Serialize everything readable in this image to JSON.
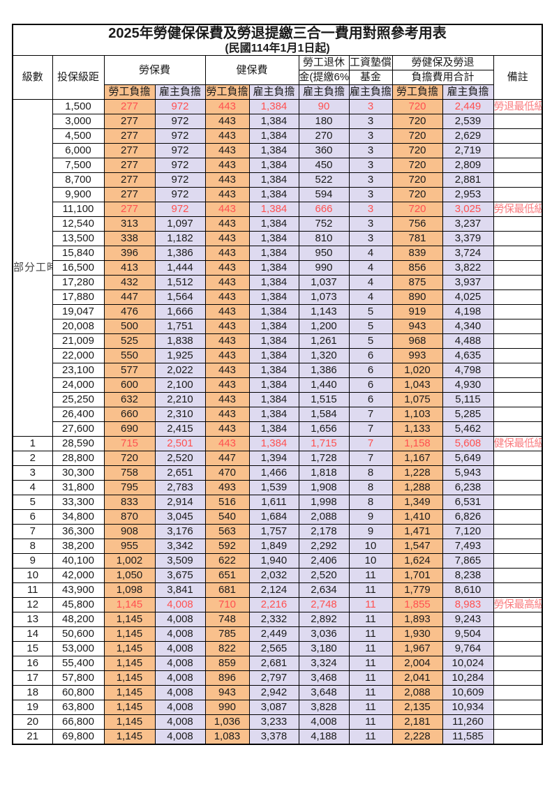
{
  "title": "2025年勞健保保費及勞退提繳三合一費用對照參考用表",
  "subtitle": "(民國114年1月1日起)",
  "columns": {
    "level": "級數",
    "salary": "投保級距",
    "labor_ins": "勞保費",
    "health_ins": "健保費",
    "pension_line1": "勞工退休",
    "pension_line2": "金(提繳6%)",
    "wage_fund_line1": "工資墊償",
    "wage_fund_line2": "基金",
    "total_line1": "勞健保及勞退",
    "total_line2": "負擔費用合計",
    "employee": "勞工負擔",
    "employer": "雇主負擔",
    "note": "備註"
  },
  "part_time_label": "部分工時",
  "colors": {
    "employee_bg": "#f9c08c",
    "employer_bg": "#dedaf0",
    "highlight_text": "#ff5050",
    "note_text": "#fa7d80"
  },
  "rows": [
    {
      "level": "",
      "salary": "1,500",
      "li_emp": "277",
      "li_er": "972",
      "hi_emp": "443",
      "hi_er": "1,384",
      "pen_er": "90",
      "fund_er": "3",
      "tot_emp": "720",
      "tot_er": "2,449",
      "note": "勞退最低級距",
      "highlight": true,
      "large": false
    },
    {
      "level": "",
      "salary": "3,000",
      "li_emp": "277",
      "li_er": "972",
      "hi_emp": "443",
      "hi_er": "1,384",
      "pen_er": "180",
      "fund_er": "3",
      "tot_emp": "720",
      "tot_er": "2,539",
      "note": "",
      "highlight": false,
      "large": false
    },
    {
      "level": "",
      "salary": "4,500",
      "li_emp": "277",
      "li_er": "972",
      "hi_emp": "443",
      "hi_er": "1,384",
      "pen_er": "270",
      "fund_er": "3",
      "tot_emp": "720",
      "tot_er": "2,629",
      "note": "",
      "highlight": false,
      "large": false
    },
    {
      "level": "",
      "salary": "6,000",
      "li_emp": "277",
      "li_er": "972",
      "hi_emp": "443",
      "hi_er": "1,384",
      "pen_er": "360",
      "fund_er": "3",
      "tot_emp": "720",
      "tot_er": "2,719",
      "note": "",
      "highlight": false,
      "large": false
    },
    {
      "level": "",
      "salary": "7,500",
      "li_emp": "277",
      "li_er": "972",
      "hi_emp": "443",
      "hi_er": "1,384",
      "pen_er": "450",
      "fund_er": "3",
      "tot_emp": "720",
      "tot_er": "2,809",
      "note": "",
      "highlight": false,
      "large": false
    },
    {
      "level": "",
      "salary": "8,700",
      "li_emp": "277",
      "li_er": "972",
      "hi_emp": "443",
      "hi_er": "1,384",
      "pen_er": "522",
      "fund_er": "3",
      "tot_emp": "720",
      "tot_er": "2,881",
      "note": "",
      "highlight": false,
      "large": false
    },
    {
      "level": "",
      "salary": "9,900",
      "li_emp": "277",
      "li_er": "972",
      "hi_emp": "443",
      "hi_er": "1,384",
      "pen_er": "594",
      "fund_er": "3",
      "tot_emp": "720",
      "tot_er": "2,953",
      "note": "",
      "highlight": false,
      "large": false
    },
    {
      "level": "",
      "salary": "11,100",
      "li_emp": "277",
      "li_er": "972",
      "hi_emp": "443",
      "hi_er": "1,384",
      "pen_er": "666",
      "fund_er": "3",
      "tot_emp": "720",
      "tot_er": "3,025",
      "note": "勞保最低級距",
      "highlight": true,
      "large": false
    },
    {
      "level": "",
      "salary": "12,540",
      "li_emp": "313",
      "li_er": "1,097",
      "hi_emp": "443",
      "hi_er": "1,384",
      "pen_er": "752",
      "fund_er": "3",
      "tot_emp": "756",
      "tot_er": "3,237",
      "note": "",
      "highlight": false,
      "large": false
    },
    {
      "level": "",
      "salary": "13,500",
      "li_emp": "338",
      "li_er": "1,182",
      "hi_emp": "443",
      "hi_er": "1,384",
      "pen_er": "810",
      "fund_er": "3",
      "tot_emp": "781",
      "tot_er": "3,379",
      "note": "",
      "highlight": false,
      "large": false
    },
    {
      "level": "",
      "salary": "15,840",
      "li_emp": "396",
      "li_er": "1,386",
      "hi_emp": "443",
      "hi_er": "1,384",
      "pen_er": "950",
      "fund_er": "4",
      "tot_emp": "839",
      "tot_er": "3,724",
      "note": "",
      "highlight": false,
      "large": false
    },
    {
      "level": "",
      "salary": "16,500",
      "li_emp": "413",
      "li_er": "1,444",
      "hi_emp": "443",
      "hi_er": "1,384",
      "pen_er": "990",
      "fund_er": "4",
      "tot_emp": "856",
      "tot_er": "3,822",
      "note": "",
      "highlight": false,
      "large": false
    },
    {
      "level": "",
      "salary": "17,280",
      "li_emp": "432",
      "li_er": "1,512",
      "hi_emp": "443",
      "hi_er": "1,384",
      "pen_er": "1,037",
      "fund_er": "4",
      "tot_emp": "875",
      "tot_er": "3,937",
      "note": "",
      "highlight": false,
      "large": false
    },
    {
      "level": "",
      "salary": "17,880",
      "li_emp": "447",
      "li_er": "1,564",
      "hi_emp": "443",
      "hi_er": "1,384",
      "pen_er": "1,073",
      "fund_er": "4",
      "tot_emp": "890",
      "tot_er": "4,025",
      "note": "",
      "highlight": false,
      "large": false
    },
    {
      "level": "",
      "salary": "19,047",
      "li_emp": "476",
      "li_er": "1,666",
      "hi_emp": "443",
      "hi_er": "1,384",
      "pen_er": "1,143",
      "fund_er": "5",
      "tot_emp": "919",
      "tot_er": "4,198",
      "note": "",
      "highlight": false,
      "large": false
    },
    {
      "level": "",
      "salary": "20,008",
      "li_emp": "500",
      "li_er": "1,751",
      "hi_emp": "443",
      "hi_er": "1,384",
      "pen_er": "1,200",
      "fund_er": "5",
      "tot_emp": "943",
      "tot_er": "4,340",
      "note": "",
      "highlight": false,
      "large": false
    },
    {
      "level": "",
      "salary": "21,009",
      "li_emp": "525",
      "li_er": "1,838",
      "hi_emp": "443",
      "hi_er": "1,384",
      "pen_er": "1,261",
      "fund_er": "5",
      "tot_emp": "968",
      "tot_er": "4,488",
      "note": "",
      "highlight": false,
      "large": false
    },
    {
      "level": "",
      "salary": "22,000",
      "li_emp": "550",
      "li_er": "1,925",
      "hi_emp": "443",
      "hi_er": "1,384",
      "pen_er": "1,320",
      "fund_er": "6",
      "tot_emp": "993",
      "tot_er": "4,635",
      "note": "",
      "highlight": false,
      "large": false
    },
    {
      "level": "",
      "salary": "23,100",
      "li_emp": "577",
      "li_er": "2,022",
      "hi_emp": "443",
      "hi_er": "1,384",
      "pen_er": "1,386",
      "fund_er": "6",
      "tot_emp": "1,020",
      "tot_er": "4,798",
      "note": "",
      "highlight": false,
      "large": false
    },
    {
      "level": "",
      "salary": "24,000",
      "li_emp": "600",
      "li_er": "2,100",
      "hi_emp": "443",
      "hi_er": "1,384",
      "pen_er": "1,440",
      "fund_er": "6",
      "tot_emp": "1,043",
      "tot_er": "4,930",
      "note": "",
      "highlight": false,
      "large": false
    },
    {
      "level": "",
      "salary": "25,250",
      "li_emp": "632",
      "li_er": "2,210",
      "hi_emp": "443",
      "hi_er": "1,384",
      "pen_er": "1,515",
      "fund_er": "6",
      "tot_emp": "1,075",
      "tot_er": "5,115",
      "note": "",
      "highlight": false,
      "large": false
    },
    {
      "level": "",
      "salary": "26,400",
      "li_emp": "660",
      "li_er": "2,310",
      "hi_emp": "443",
      "hi_er": "1,384",
      "pen_er": "1,584",
      "fund_er": "7",
      "tot_emp": "1,103",
      "tot_er": "5,285",
      "note": "",
      "highlight": false,
      "large": false
    },
    {
      "level": "",
      "salary": "27,600",
      "li_emp": "690",
      "li_er": "2,415",
      "hi_emp": "443",
      "hi_er": "1,384",
      "pen_er": "1,656",
      "fund_er": "7",
      "tot_emp": "1,133",
      "tot_er": "5,462",
      "note": "",
      "highlight": false,
      "large": false
    },
    {
      "level": "1",
      "salary": "28,590",
      "li_emp": "715",
      "li_er": "2,501",
      "hi_emp": "443",
      "hi_er": "1,384",
      "pen_er": "1,715",
      "fund_er": "7",
      "tot_emp": "1,158",
      "tot_er": "5,608",
      "note": "健保最低級距",
      "highlight": true,
      "large": true
    },
    {
      "level": "2",
      "salary": "28,800",
      "li_emp": "720",
      "li_er": "2,520",
      "hi_emp": "447",
      "hi_er": "1,394",
      "pen_er": "1,728",
      "fund_er": "7",
      "tot_emp": "1,167",
      "tot_er": "5,649",
      "note": "",
      "highlight": false,
      "large": false
    },
    {
      "level": "3",
      "salary": "30,300",
      "li_emp": "758",
      "li_er": "2,651",
      "hi_emp": "470",
      "hi_er": "1,466",
      "pen_er": "1,818",
      "fund_er": "8",
      "tot_emp": "1,228",
      "tot_er": "5,943",
      "note": "",
      "highlight": false,
      "large": false
    },
    {
      "level": "4",
      "salary": "31,800",
      "li_emp": "795",
      "li_er": "2,783",
      "hi_emp": "493",
      "hi_er": "1,539",
      "pen_er": "1,908",
      "fund_er": "8",
      "tot_emp": "1,288",
      "tot_er": "6,238",
      "note": "",
      "highlight": false,
      "large": false
    },
    {
      "level": "5",
      "salary": "33,300",
      "li_emp": "833",
      "li_er": "2,914",
      "hi_emp": "516",
      "hi_er": "1,611",
      "pen_er": "1,998",
      "fund_er": "8",
      "tot_emp": "1,349",
      "tot_er": "6,531",
      "note": "",
      "highlight": false,
      "large": false
    },
    {
      "level": "6",
      "salary": "34,800",
      "li_emp": "870",
      "li_er": "3,045",
      "hi_emp": "540",
      "hi_er": "1,684",
      "pen_er": "2,088",
      "fund_er": "9",
      "tot_emp": "1,410",
      "tot_er": "6,826",
      "note": "",
      "highlight": false,
      "large": false
    },
    {
      "level": "7",
      "salary": "36,300",
      "li_emp": "908",
      "li_er": "3,176",
      "hi_emp": "563",
      "hi_er": "1,757",
      "pen_er": "2,178",
      "fund_er": "9",
      "tot_emp": "1,471",
      "tot_er": "7,120",
      "note": "",
      "highlight": false,
      "large": false
    },
    {
      "level": "8",
      "salary": "38,200",
      "li_emp": "955",
      "li_er": "3,342",
      "hi_emp": "592",
      "hi_er": "1,849",
      "pen_er": "2,292",
      "fund_er": "10",
      "tot_emp": "1,547",
      "tot_er": "7,493",
      "note": "",
      "highlight": false,
      "large": false
    },
    {
      "level": "9",
      "salary": "40,100",
      "li_emp": "1,002",
      "li_er": "3,509",
      "hi_emp": "622",
      "hi_er": "1,940",
      "pen_er": "2,406",
      "fund_er": "10",
      "tot_emp": "1,624",
      "tot_er": "7,865",
      "note": "",
      "highlight": false,
      "large": false
    },
    {
      "level": "10",
      "salary": "42,000",
      "li_emp": "1,050",
      "li_er": "3,675",
      "hi_emp": "651",
      "hi_er": "2,032",
      "pen_er": "2,520",
      "fund_er": "11",
      "tot_emp": "1,701",
      "tot_er": "8,238",
      "note": "",
      "highlight": false,
      "large": false
    },
    {
      "level": "11",
      "salary": "43,900",
      "li_emp": "1,098",
      "li_er": "3,841",
      "hi_emp": "681",
      "hi_er": "2,124",
      "pen_er": "2,634",
      "fund_er": "11",
      "tot_emp": "1,779",
      "tot_er": "8,610",
      "note": "",
      "highlight": false,
      "large": false
    },
    {
      "level": "12",
      "salary": "45,800",
      "li_emp": "1,145",
      "li_er": "4,008",
      "hi_emp": "710",
      "hi_er": "2,216",
      "pen_er": "2,748",
      "fund_er": "11",
      "tot_emp": "1,855",
      "tot_er": "8,983",
      "note": "勞保最高級距",
      "highlight": true,
      "large": true
    },
    {
      "level": "13",
      "salary": "48,200",
      "li_emp": "1,145",
      "li_er": "4,008",
      "hi_emp": "748",
      "hi_er": "2,332",
      "pen_er": "2,892",
      "fund_er": "11",
      "tot_emp": "1,893",
      "tot_er": "9,243",
      "note": "",
      "highlight": false,
      "large": false
    },
    {
      "level": "14",
      "salary": "50,600",
      "li_emp": "1,145",
      "li_er": "4,008",
      "hi_emp": "785",
      "hi_er": "2,449",
      "pen_er": "3,036",
      "fund_er": "11",
      "tot_emp": "1,930",
      "tot_er": "9,504",
      "note": "",
      "highlight": false,
      "large": false
    },
    {
      "level": "15",
      "salary": "53,000",
      "li_emp": "1,145",
      "li_er": "4,008",
      "hi_emp": "822",
      "hi_er": "2,565",
      "pen_er": "3,180",
      "fund_er": "11",
      "tot_emp": "1,967",
      "tot_er": "9,764",
      "note": "",
      "highlight": false,
      "large": false
    },
    {
      "level": "16",
      "salary": "55,400",
      "li_emp": "1,145",
      "li_er": "4,008",
      "hi_emp": "859",
      "hi_er": "2,681",
      "pen_er": "3,324",
      "fund_er": "11",
      "tot_emp": "2,004",
      "tot_er": "10,024",
      "note": "",
      "highlight": false,
      "large": false
    },
    {
      "level": "17",
      "salary": "57,800",
      "li_emp": "1,145",
      "li_er": "4,008",
      "hi_emp": "896",
      "hi_er": "2,797",
      "pen_er": "3,468",
      "fund_er": "11",
      "tot_emp": "2,041",
      "tot_er": "10,284",
      "note": "",
      "highlight": false,
      "large": false
    },
    {
      "level": "18",
      "salary": "60,800",
      "li_emp": "1,145",
      "li_er": "4,008",
      "hi_emp": "943",
      "hi_er": "2,942",
      "pen_er": "3,648",
      "fund_er": "11",
      "tot_emp": "2,088",
      "tot_er": "10,609",
      "note": "",
      "highlight": false,
      "large": false
    },
    {
      "level": "19",
      "salary": "63,800",
      "li_emp": "1,145",
      "li_er": "4,008",
      "hi_emp": "990",
      "hi_er": "3,087",
      "pen_er": "3,828",
      "fund_er": "11",
      "tot_emp": "2,135",
      "tot_er": "10,934",
      "note": "",
      "highlight": false,
      "large": false
    },
    {
      "level": "20",
      "salary": "66,800",
      "li_emp": "1,145",
      "li_er": "4,008",
      "hi_emp": "1,036",
      "hi_er": "3,233",
      "pen_er": "4,008",
      "fund_er": "11",
      "tot_emp": "2,181",
      "tot_er": "11,260",
      "note": "",
      "highlight": false,
      "large": false
    },
    {
      "level": "21",
      "salary": "69,800",
      "li_emp": "1,145",
      "li_er": "4,008",
      "hi_emp": "1,083",
      "hi_er": "3,378",
      "pen_er": "4,188",
      "fund_er": "11",
      "tot_emp": "2,228",
      "tot_er": "11,585",
      "note": "",
      "highlight": false,
      "large": false
    }
  ]
}
